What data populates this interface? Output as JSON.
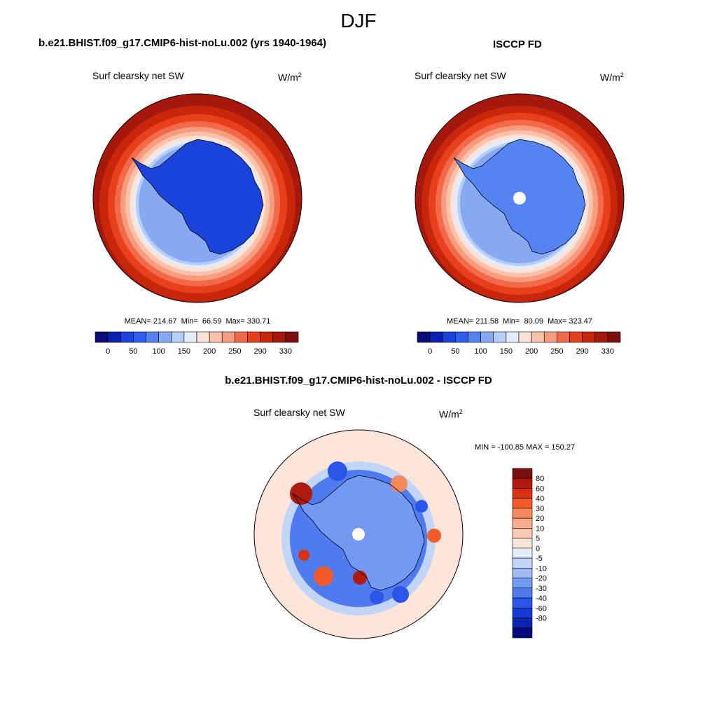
{
  "season": "DJF",
  "colorbar": {
    "colors": [
      "#0a0c78",
      "#0b1fb0",
      "#1a43dc",
      "#2f5ef0",
      "#5584f2",
      "#87a9f4",
      "#b7cdf6",
      "#e2ecfb",
      "#fde3d7",
      "#fbc1a9",
      "#f79c7e",
      "#f26a49",
      "#e83f1c",
      "#c9270c",
      "#a5180b",
      "#7a0f0f"
    ],
    "labels": [
      "0",
      "50",
      "100",
      "150",
      "200",
      "250",
      "290",
      "330"
    ]
  },
  "model_panel": {
    "title": "b.e21.BHIST.f09_g17.CMIP6-hist-noLu.002 (yrs 1940-1964)",
    "variable": "Surf clearsky net SW",
    "units_base": "W/m",
    "units_exp": "2",
    "stats": "MEAN= 214.67  Min=  66.59  Max= 330.71"
  },
  "obs_panel": {
    "title": "ISCCP FD",
    "variable": "Surf clearsky net SW",
    "units_base": "W/m",
    "units_exp": "2",
    "stats": "MEAN= 211.58  Min=  80.09  Max= 323.47"
  },
  "diff_panel": {
    "title": "b.e21.BHIST.f09_g17.CMIP6-hist-noLu.002 - ISCCP FD",
    "variable": "Surf clearsky net SW",
    "units_base": "W/m",
    "units_exp": "2",
    "minmax": "MIN = -100.85 MAX = 150.27",
    "colorbar": {
      "colors": [
        "#7a0f0f",
        "#b01a0c",
        "#d9300f",
        "#f25a2a",
        "#f4895c",
        "#f8ac8b",
        "#fccab2",
        "#fde6d9",
        "#e2ecfb",
        "#c2d5f8",
        "#9dbaf5",
        "#739af2",
        "#4f7bef",
        "#2a55e8",
        "#143ad4",
        "#0a24ae",
        "#060c7e"
      ],
      "labels": [
        "80",
        "60",
        "40",
        "30",
        "20",
        "10",
        "5",
        "0",
        "-5",
        "-10",
        "-20",
        "-30",
        "-40",
        "-60",
        "-80"
      ]
    }
  }
}
